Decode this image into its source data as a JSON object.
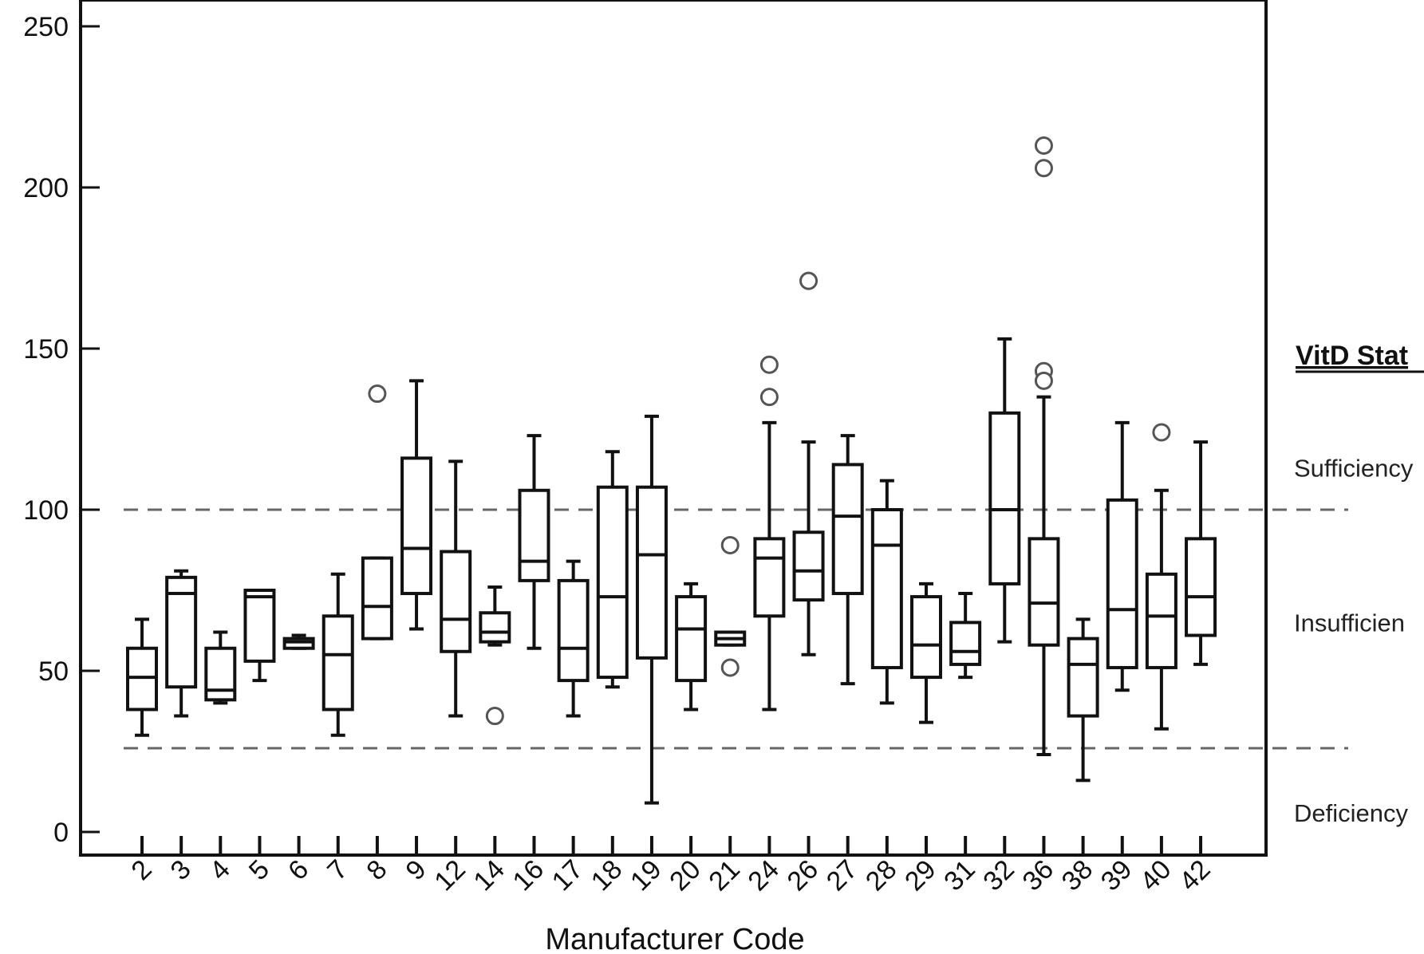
{
  "chart_data": {
    "type": "boxplot",
    "xlabel": "Manufacturer Code",
    "ylabel": "",
    "ylim": [
      0,
      250
    ],
    "yticks": [
      0,
      50,
      100,
      150,
      200,
      250
    ],
    "grid": false,
    "categories": [
      "2",
      "3",
      "4",
      "5",
      "6",
      "7",
      "8",
      "9",
      "12",
      "14",
      "16",
      "17",
      "18",
      "19",
      "20",
      "21",
      "24",
      "26",
      "27",
      "28",
      "29",
      "31",
      "32",
      "36",
      "38",
      "39",
      "40",
      "42"
    ],
    "boxes": [
      {
        "category": "2",
        "whisker_low": 30,
        "q1": 38,
        "median": 48,
        "q3": 57,
        "whisker_high": 66,
        "outliers": []
      },
      {
        "category": "3",
        "whisker_low": 36,
        "q1": 45,
        "median": 74,
        "q3": 79,
        "whisker_high": 81,
        "outliers": []
      },
      {
        "category": "4",
        "whisker_low": 40,
        "q1": 41,
        "median": 44,
        "q3": 57,
        "whisker_high": 62,
        "outliers": []
      },
      {
        "category": "5",
        "whisker_low": 47,
        "q1": 53,
        "median": 73,
        "q3": 75,
        "whisker_high": 75,
        "outliers": []
      },
      {
        "category": "6",
        "whisker_low": 57,
        "q1": 57,
        "median": 59,
        "q3": 60,
        "whisker_high": 61,
        "outliers": []
      },
      {
        "category": "7",
        "whisker_low": 30,
        "q1": 38,
        "median": 55,
        "q3": 67,
        "whisker_high": 80,
        "outliers": []
      },
      {
        "category": "8",
        "whisker_low": 60,
        "q1": 60,
        "median": 70,
        "q3": 85,
        "whisker_high": 85,
        "outliers": [
          136
        ]
      },
      {
        "category": "9",
        "whisker_low": 63,
        "q1": 74,
        "median": 88,
        "q3": 116,
        "whisker_high": 140,
        "outliers": []
      },
      {
        "category": "12",
        "whisker_low": 36,
        "q1": 56,
        "median": 66,
        "q3": 87,
        "whisker_high": 115,
        "outliers": []
      },
      {
        "category": "14",
        "whisker_low": 58,
        "q1": 59,
        "median": 62,
        "q3": 68,
        "whisker_high": 76,
        "outliers": [
          36
        ]
      },
      {
        "category": "16",
        "whisker_low": 57,
        "q1": 78,
        "median": 84,
        "q3": 106,
        "whisker_high": 123,
        "outliers": []
      },
      {
        "category": "17",
        "whisker_low": 36,
        "q1": 47,
        "median": 57,
        "q3": 78,
        "whisker_high": 84,
        "outliers": []
      },
      {
        "category": "18",
        "whisker_low": 45,
        "q1": 48,
        "median": 73,
        "q3": 107,
        "whisker_high": 118,
        "outliers": []
      },
      {
        "category": "19",
        "whisker_low": 9,
        "q1": 54,
        "median": 86,
        "q3": 107,
        "whisker_high": 129,
        "outliers": []
      },
      {
        "category": "20",
        "whisker_low": 38,
        "q1": 47,
        "median": 63,
        "q3": 73,
        "whisker_high": 77,
        "outliers": []
      },
      {
        "category": "21",
        "whisker_low": 58,
        "q1": 58,
        "median": 60,
        "q3": 62,
        "whisker_high": 62,
        "outliers": [
          89,
          51
        ]
      },
      {
        "category": "24",
        "whisker_low": 38,
        "q1": 67,
        "median": 85,
        "q3": 91,
        "whisker_high": 127,
        "outliers": [
          145,
          135
        ]
      },
      {
        "category": "26",
        "whisker_low": 55,
        "q1": 72,
        "median": 81,
        "q3": 93,
        "whisker_high": 121,
        "outliers": [
          171
        ]
      },
      {
        "category": "27",
        "whisker_low": 46,
        "q1": 74,
        "median": 98,
        "q3": 114,
        "whisker_high": 123,
        "outliers": []
      },
      {
        "category": "28",
        "whisker_low": 40,
        "q1": 51,
        "median": 89,
        "q3": 100,
        "whisker_high": 109,
        "outliers": []
      },
      {
        "category": "29",
        "whisker_low": 34,
        "q1": 48,
        "median": 58,
        "q3": 73,
        "whisker_high": 77,
        "outliers": []
      },
      {
        "category": "31",
        "whisker_low": 48,
        "q1": 52,
        "median": 56,
        "q3": 65,
        "whisker_high": 74,
        "outliers": []
      },
      {
        "category": "32",
        "whisker_low": 59,
        "q1": 77,
        "median": 100,
        "q3": 130,
        "whisker_high": 153,
        "outliers": []
      },
      {
        "category": "36",
        "whisker_low": 24,
        "q1": 58,
        "median": 71,
        "q3": 91,
        "whisker_high": 135,
        "outliers": [
          213,
          206,
          143,
          140
        ]
      },
      {
        "category": "38",
        "whisker_low": 16,
        "q1": 36,
        "median": 52,
        "q3": 60,
        "whisker_high": 66,
        "outliers": []
      },
      {
        "category": "39",
        "whisker_low": 44,
        "q1": 51,
        "median": 69,
        "q3": 103,
        "whisker_high": 127,
        "outliers": []
      },
      {
        "category": "40",
        "whisker_low": 32,
        "q1": 51,
        "median": 67,
        "q3": 80,
        "whisker_high": 106,
        "outliers": [
          124
        ]
      },
      {
        "category": "42",
        "whisker_low": 52,
        "q1": 61,
        "median": 73,
        "q3": 91,
        "whisker_high": 121,
        "outliers": []
      }
    ],
    "reference_lines": [
      {
        "value": 100,
        "style": "dashed"
      },
      {
        "value": 26,
        "style": "dashed"
      }
    ],
    "status_panel": {
      "heading": "VitD Stat",
      "labels": [
        {
          "text": "Sufficiency",
          "value": 113
        },
        {
          "text": "Insufficien",
          "value": 65
        },
        {
          "text": "Deficiency",
          "value": 6
        }
      ]
    },
    "colors": {
      "box_stroke": "#111111",
      "outlier_stroke": "#555555",
      "reference_line": "#666666",
      "background": "#ffffff"
    }
  }
}
